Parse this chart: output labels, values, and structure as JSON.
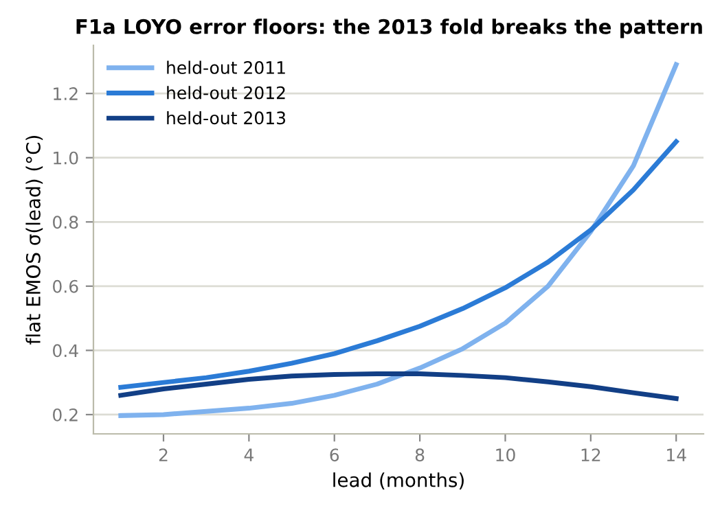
{
  "chart_data": {
    "type": "line",
    "title": "F1a LOYO error floors: the 2013 fold breaks the pattern",
    "xlabel": "lead (months)",
    "ylabel": "flat EMOS σ(lead) (°C)",
    "x": [
      1,
      2,
      3,
      4,
      5,
      6,
      7,
      8,
      9,
      10,
      11,
      12,
      13,
      14
    ],
    "series": [
      {
        "name": "held-out 2011",
        "color": "#7fb2ee",
        "values": [
          0.197,
          0.2,
          0.21,
          0.22,
          0.235,
          0.26,
          0.295,
          0.345,
          0.405,
          0.485,
          0.6,
          0.77,
          0.975,
          1.29
        ]
      },
      {
        "name": "held-out 2012",
        "color": "#2b7bd6",
        "values": [
          0.285,
          0.3,
          0.315,
          0.335,
          0.36,
          0.39,
          0.43,
          0.475,
          0.53,
          0.595,
          0.675,
          0.775,
          0.9,
          1.05
        ]
      },
      {
        "name": "held-out 2013",
        "color": "#123f86",
        "values": [
          0.26,
          0.28,
          0.295,
          0.31,
          0.32,
          0.325,
          0.327,
          0.327,
          0.322,
          0.315,
          0.302,
          0.287,
          0.268,
          0.25
        ]
      }
    ],
    "xlim": [
      0.36,
      14.64
    ],
    "ylim": [
      0.14,
      1.35
    ],
    "xticks": [
      2,
      4,
      6,
      8,
      10,
      12,
      14
    ],
    "yticks": [
      {
        "value": 0.2,
        "label": "0.2"
      },
      {
        "value": 0.4,
        "label": "0.4"
      },
      {
        "value": 0.6,
        "label": "0.6"
      },
      {
        "value": 0.8,
        "label": "0.8"
      },
      {
        "value": 1.0,
        "label": "1.0"
      },
      {
        "value": 1.2,
        "label": "1.2"
      }
    ],
    "grid": "y",
    "legend": "top left",
    "marker": "none",
    "line_style": "solid"
  }
}
